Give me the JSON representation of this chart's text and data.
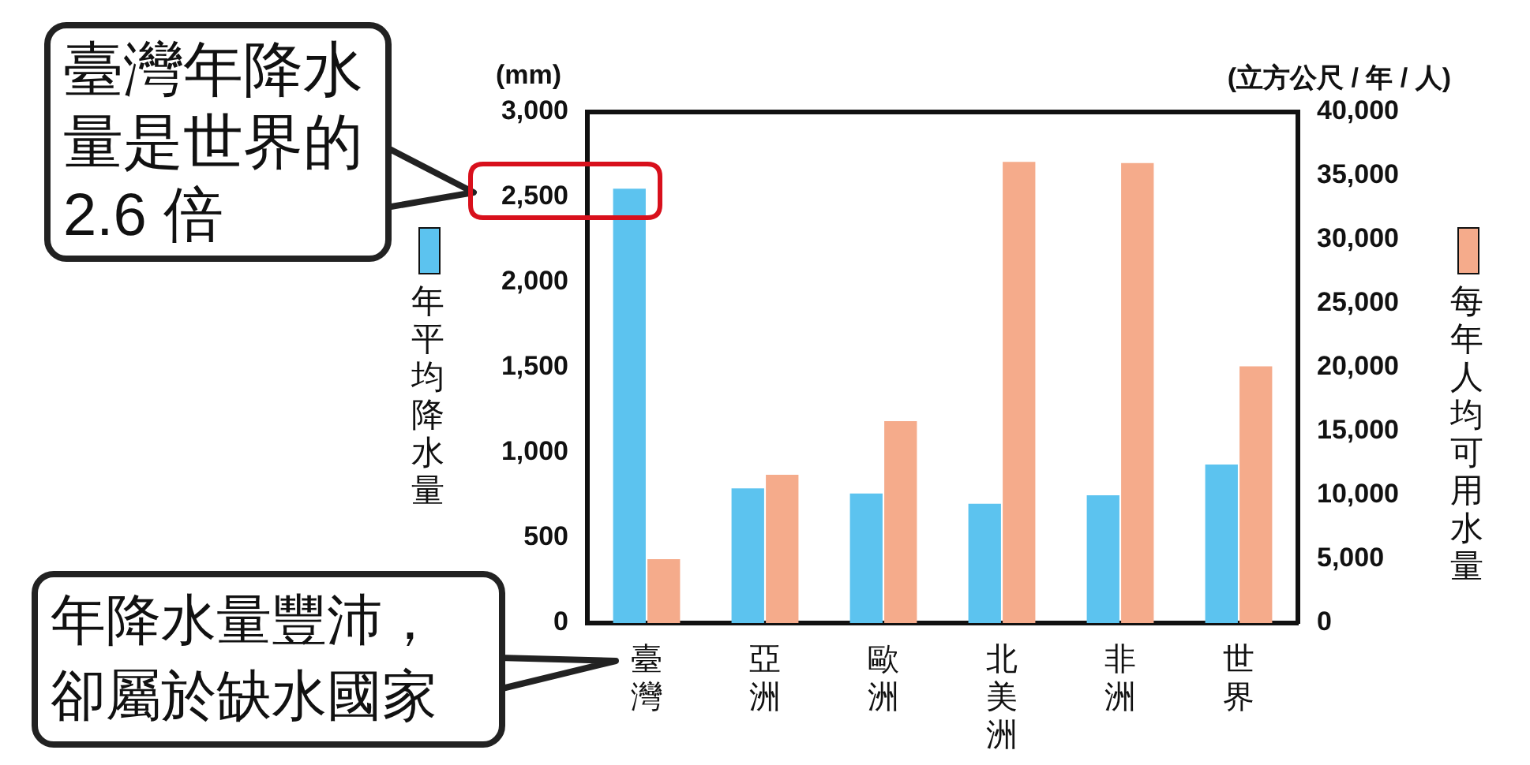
{
  "chart_data": {
    "type": "bar",
    "ylabel": "(mm)",
    "y2label": "(立方公尺 / 年 / 人)",
    "categories": [
      "臺灣",
      "亞洲",
      "歐洲",
      "北美洲",
      "非洲",
      "世界"
    ],
    "series": [
      {
        "name": "年平均降水量",
        "color": "#5cc3ef",
        "values": [
          2550,
          790,
          760,
          700,
          750,
          930
        ]
      },
      {
        "name": "每年人均可用水量",
        "color": "#f5ab8b",
        "axis": "y2",
        "values": [
          5000,
          11600,
          15800,
          36100,
          36000,
          20100
        ]
      }
    ],
    "ylim": [
      0,
      3000
    ],
    "yticks": [
      0,
      {
        "value": 500,
        "label": "500"
      },
      {
        "value": 1000,
        "label": "1,000"
      },
      {
        "value": 1500,
        "label": "1,500"
      },
      {
        "value": 2000,
        "label": "2,000"
      },
      {
        "value": 2500,
        "label": "2,500"
      },
      {
        "value": 3000,
        "label": "3,000"
      }
    ],
    "y2lim": [
      0,
      40000
    ],
    "y2ticks": [
      0,
      {
        "value": 5000,
        "label": "5,000"
      },
      {
        "value": 10000,
        "label": "10,000"
      },
      {
        "value": 15000,
        "label": "15,000"
      },
      {
        "value": 20000,
        "label": "20,000"
      },
      {
        "value": 25000,
        "label": "25,000"
      },
      {
        "value": 30000,
        "label": "30,000"
      },
      {
        "value": 35000,
        "label": "35,000"
      },
      {
        "value": 40000,
        "label": "40,000"
      }
    ],
    "grid": false,
    "legend": "left",
    "annotations": [
      "臺灣年降水量是世界的2.6 倍",
      "年降水量豐沛，卻屬於缺水國家"
    ]
  }
}
